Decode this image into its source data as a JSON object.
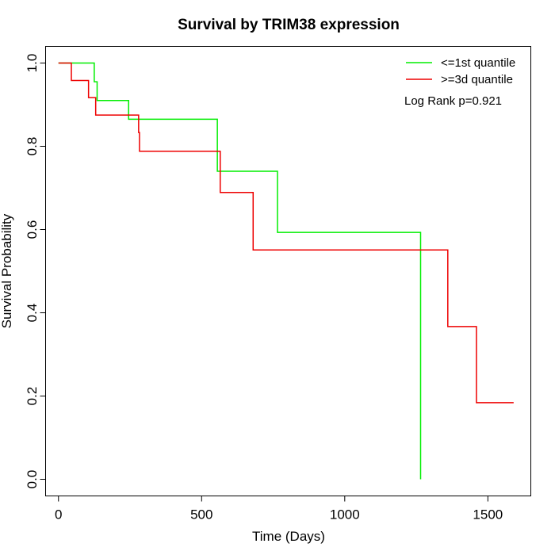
{
  "chart_data": {
    "type": "line",
    "title": "Survival by TRIM38 expression",
    "xlabel": "Time (Days)",
    "ylabel": "Survival Probability",
    "xlim": [
      -45,
      1650
    ],
    "ylim": [
      -0.04,
      1.04
    ],
    "x_ticks": [
      0,
      500,
      1000,
      1500
    ],
    "y_ticks": [
      0.0,
      0.2,
      0.4,
      0.6,
      0.8,
      1.0
    ],
    "x_tick_labels": [
      "0",
      "500",
      "1000",
      "1500"
    ],
    "y_tick_labels": [
      "0.0",
      "0.2",
      "0.4",
      "0.6",
      "0.8",
      "1.0"
    ],
    "grid": false,
    "legend_position": "top-right",
    "annotation": "Log Rank p=0.921",
    "series": [
      {
        "name": "<=1st quantile",
        "color": "#00ee00",
        "x": [
          0,
          110,
          125,
          135,
          245,
          555,
          765,
          1265
        ],
        "y": [
          1.0,
          1.0,
          0.955,
          0.91,
          0.865,
          0.74,
          0.593,
          0.0
        ]
      },
      {
        "name": ">=3d quantile",
        "color": "#ee0000",
        "x": [
          0,
          45,
          105,
          130,
          280,
          283,
          565,
          680,
          1360,
          1460,
          1590
        ],
        "y": [
          1.0,
          0.958,
          0.917,
          0.875,
          0.833,
          0.788,
          0.689,
          0.551,
          0.367,
          0.184,
          0.184
        ]
      }
    ]
  }
}
